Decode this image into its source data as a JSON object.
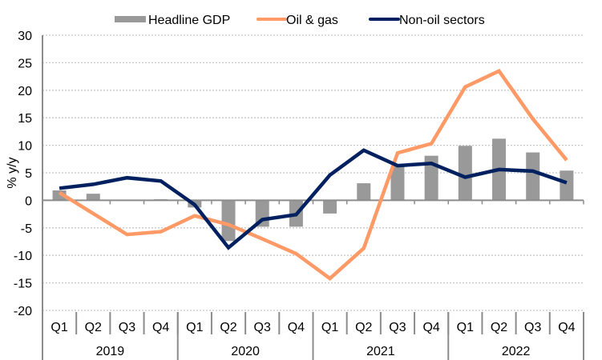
{
  "chart_data": {
    "type": "bar+line",
    "title": "",
    "xlabel": "",
    "ylabel": "% y/y",
    "ylim": [
      -20,
      30
    ],
    "yticks": [
      30,
      25,
      20,
      15,
      10,
      5,
      0,
      -5,
      -10,
      -15,
      -20
    ],
    "grid": true,
    "legend_position": "top-center",
    "categories": [
      "Q1",
      "Q2",
      "Q3",
      "Q4",
      "Q1",
      "Q2",
      "Q3",
      "Q4",
      "Q1",
      "Q2",
      "Q3",
      "Q4",
      "Q1",
      "Q2",
      "Q3",
      "Q4"
    ],
    "groups": [
      {
        "label": "2019",
        "span": 4
      },
      {
        "label": "2020",
        "span": 4
      },
      {
        "label": "2021",
        "span": 4
      },
      {
        "label": "2022",
        "span": 4
      }
    ],
    "series": [
      {
        "name": "Headline GDP",
        "kind": "bar",
        "color": "#999999",
        "values": [
          1.8,
          1.2,
          0.0,
          0.2,
          -1.3,
          -7.4,
          -4.8,
          -4.8,
          -2.4,
          3.1,
          6.2,
          8.1,
          9.9,
          11.2,
          8.7,
          5.4
        ]
      },
      {
        "name": "Oil & gas",
        "kind": "line",
        "color": "#FF9966",
        "values": [
          1.4,
          -2.4,
          -6.2,
          -5.7,
          -2.8,
          -4.4,
          -7.0,
          -9.7,
          -14.2,
          -8.7,
          8.6,
          10.3,
          20.6,
          23.5,
          14.8,
          7.3
        ]
      },
      {
        "name": "Non-oil sectors",
        "kind": "line",
        "color": "#002060",
        "values": [
          2.2,
          2.9,
          4.1,
          3.5,
          -0.8,
          -8.6,
          -3.5,
          -2.6,
          4.6,
          9.1,
          6.3,
          6.7,
          4.2,
          5.6,
          5.3,
          3.2
        ]
      }
    ]
  }
}
